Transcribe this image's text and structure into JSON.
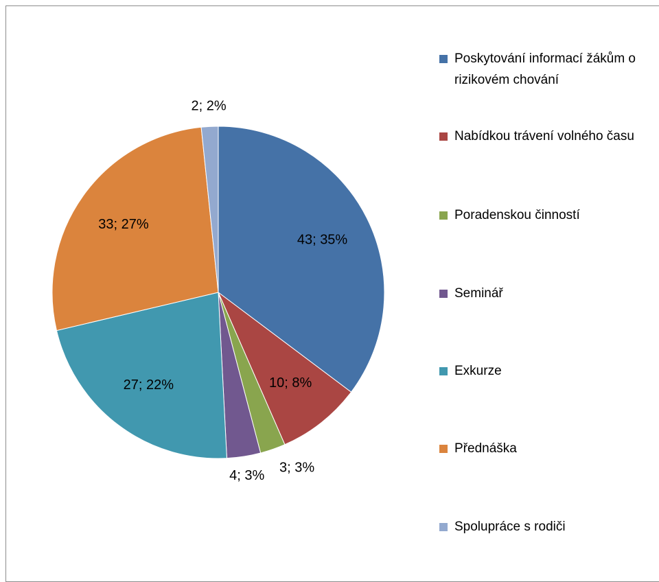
{
  "chart_data": {
    "type": "pie",
    "categories": [
      "Poskytování informací žákům o rizikovém chování",
      "Nabídkou trávení volného času",
      "Poradenskou činností",
      "Seminář",
      "Exkurze",
      "Přednáška",
      "Spolupráce s rodiči"
    ],
    "values": [
      43,
      10,
      3,
      4,
      27,
      33,
      2
    ],
    "value_labels": [
      "43; 35%",
      "10; 8%",
      "3; 3%",
      "4; 3%",
      "27; 22%",
      "33; 27%",
      "2; 2%"
    ],
    "colors": [
      "#4572a7",
      "#aa4643",
      "#89a54e",
      "#71588f",
      "#4198af",
      "#db843d",
      "#93a9cf"
    ],
    "legend": "right"
  }
}
